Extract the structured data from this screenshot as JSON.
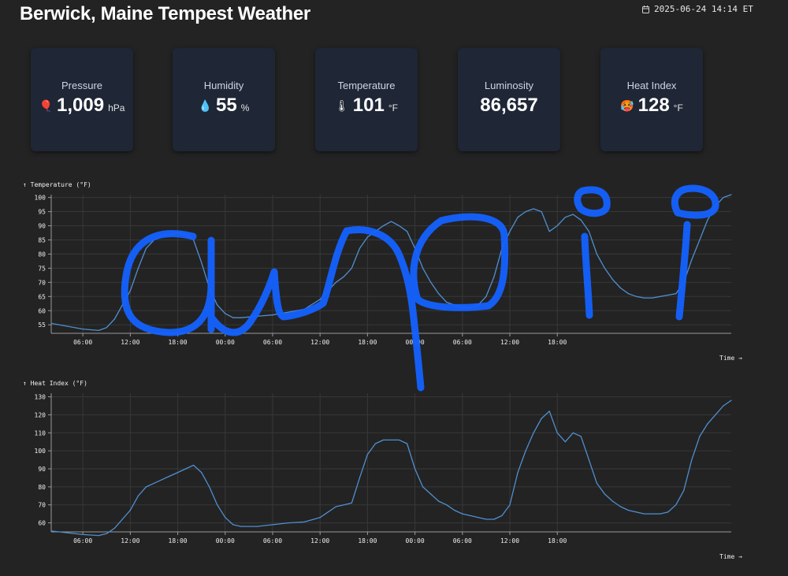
{
  "header": {
    "title": "Berwick, Maine Tempest Weather",
    "timestamp": "2025-06-24 14:14 ET",
    "timestamp_icon": "calendar-icon"
  },
  "cards": [
    {
      "label": "Pressure",
      "emoji": "🎈",
      "value": "1,009",
      "unit": "hPa",
      "icon": "balloon-icon"
    },
    {
      "label": "Humidity",
      "emoji": "💧",
      "value": "55",
      "unit": "%",
      "icon": "droplet-icon"
    },
    {
      "label": "Temperature",
      "emoji": "🌡",
      "value": "101",
      "unit": "°F",
      "icon": "thermometer-icon"
    },
    {
      "label": "Luminosity",
      "emoji": "",
      "value": "86,657",
      "unit": "",
      "icon": ""
    },
    {
      "label": "Heat Index",
      "emoji": "🥵",
      "value": "128",
      "unit": "°F",
      "icon": "hot-face-icon"
    }
  ],
  "colors": {
    "background": "#232323",
    "card": "#1f2635",
    "line": "#4f8fd0",
    "grid": "#3a3a3a",
    "ink": "#1462ff"
  },
  "chart_data": [
    {
      "type": "line",
      "ylabel": "↑ Temperature (°F)",
      "xlabel": "Time →",
      "x_ticks": [
        "06:00",
        "12:00",
        "18:00",
        "00:00",
        "06:00",
        "12:00",
        "18:00",
        "00:00",
        "06:00",
        "12:00",
        "18:00"
      ],
      "y_ticks": [
        55,
        60,
        65,
        70,
        75,
        80,
        85,
        90,
        95,
        100
      ],
      "ylim": [
        52,
        101
      ],
      "xlim_hours": [
        2,
        88
      ],
      "grid": true,
      "series": [
        {
          "x": [
            2,
            4,
            6,
            8,
            9,
            10,
            11,
            12,
            13,
            14,
            15,
            16,
            17,
            18,
            19,
            20,
            21,
            22,
            23,
            24,
            25,
            26,
            28,
            30,
            32,
            34,
            36,
            38,
            39,
            40,
            41,
            42,
            43,
            44,
            45,
            46,
            47,
            48,
            49,
            50,
            51,
            52,
            53,
            54,
            55,
            56,
            57,
            58,
            59,
            60,
            61,
            62,
            63,
            64,
            65,
            66,
            67,
            68,
            69,
            70,
            71,
            72,
            73,
            74,
            75,
            76,
            77,
            78,
            79,
            80,
            81,
            82,
            83,
            84,
            85,
            86,
            87,
            88
          ],
          "y": [
            55.5,
            54.5,
            53.5,
            53,
            54,
            57,
            62,
            67,
            75,
            82,
            85,
            86.5,
            87,
            87.5,
            87,
            85,
            77,
            68,
            62,
            59,
            57.5,
            57.5,
            58,
            58.5,
            59.5,
            60.5,
            64,
            70,
            72,
            75,
            82,
            86,
            88,
            90,
            91.5,
            90,
            88,
            82,
            75,
            70,
            66,
            63,
            62,
            61,
            61,
            62,
            65,
            72,
            82,
            88,
            93,
            95,
            96,
            95,
            88,
            90,
            93,
            94,
            92,
            88,
            80,
            75,
            71,
            68,
            66,
            65,
            64.5,
            64.5,
            65,
            65.5,
            66,
            70,
            78,
            85,
            92,
            97,
            100,
            101
          ]
        }
      ]
    },
    {
      "type": "line",
      "ylabel": "↑ Heat Index (°F)",
      "xlabel": "Time →",
      "x_ticks": [
        "06:00",
        "12:00",
        "18:00",
        "00:00",
        "06:00",
        "12:00",
        "18:00",
        "00:00",
        "06:00",
        "12:00",
        "18:00"
      ],
      "y_ticks": [
        60,
        70,
        80,
        90,
        100,
        110,
        120,
        130
      ],
      "ylim": [
        55,
        132
      ],
      "xlim_hours": [
        2,
        88
      ],
      "grid": true,
      "series": [
        {
          "x": [
            2,
            4,
            6,
            8,
            9,
            10,
            11,
            12,
            13,
            14,
            15,
            16,
            17,
            18,
            19,
            20,
            21,
            22,
            23,
            24,
            25,
            26,
            28,
            30,
            32,
            34,
            36,
            37,
            38,
            39,
            40,
            41,
            42,
            43,
            44,
            45,
            46,
            47,
            48,
            49,
            50,
            51,
            52,
            53,
            54,
            55,
            56,
            57,
            58,
            59,
            60,
            61,
            62,
            63,
            64,
            65,
            66,
            67,
            68,
            69,
            70,
            71,
            72,
            73,
            74,
            75,
            76,
            77,
            78,
            79,
            80,
            81,
            82,
            83,
            84,
            85,
            86,
            87,
            88
          ],
          "y": [
            55.5,
            54.5,
            53.5,
            53,
            54,
            57,
            62,
            67,
            75,
            80,
            82,
            84,
            86,
            88,
            90,
            92,
            88,
            80,
            70,
            63,
            59,
            58,
            58,
            59,
            60,
            60.5,
            63,
            66,
            69,
            70,
            71,
            85,
            98,
            104,
            106,
            106,
            106,
            104,
            90,
            80,
            76,
            72,
            70,
            67,
            65,
            64,
            63,
            62,
            62,
            64,
            70,
            88,
            100,
            110,
            118,
            122,
            110,
            105,
            110,
            108,
            95,
            82,
            76,
            72,
            69,
            67,
            66,
            65,
            65,
            65,
            66,
            70,
            78,
            95,
            108,
            115,
            120,
            125,
            128
          ]
        }
      ]
    }
  ],
  "annotation": {
    "description": "blue handwritten scribble overlay",
    "text": "awpoi?"
  }
}
